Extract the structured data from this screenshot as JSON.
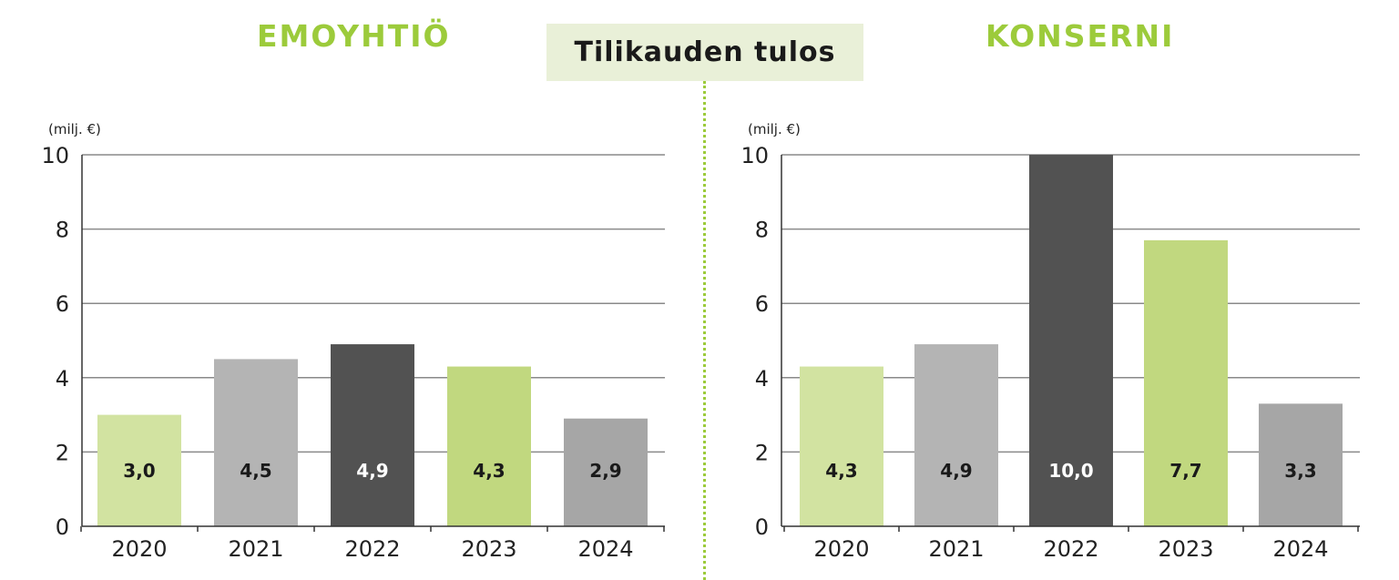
{
  "header": {
    "left_title": "EMOYHTIÖ",
    "center_title": "Tilikauden tulos",
    "right_title": "KONSERNI"
  },
  "chart_data": [
    {
      "type": "bar",
      "title": "EMOYHTIÖ",
      "ylabel": "(milj. €)",
      "ylim": [
        0,
        10
      ],
      "yticks": [
        0,
        2,
        4,
        6,
        8,
        10
      ],
      "grid": true,
      "categories": [
        "2020",
        "2021",
        "2022",
        "2023",
        "2024"
      ],
      "values": [
        3.0,
        4.5,
        4.9,
        4.3,
        2.9
      ],
      "value_labels": [
        "3,0",
        "4,5",
        "4,9",
        "4,3",
        "2,9"
      ],
      "colors": [
        "#d2e3a1",
        "#b4b4b4",
        "#525252",
        "#c1d87f",
        "#a6a6a6"
      ],
      "label_colors": [
        "#1a1a1a",
        "#1a1a1a",
        "#ffffff",
        "#1a1a1a",
        "#1a1a1a"
      ]
    },
    {
      "type": "bar",
      "title": "KONSERNI",
      "ylabel": "(milj. €)",
      "ylim": [
        0,
        10
      ],
      "yticks": [
        0,
        2,
        4,
        6,
        8,
        10
      ],
      "grid": true,
      "categories": [
        "2020",
        "2021",
        "2022",
        "2023",
        "2024"
      ],
      "values": [
        4.3,
        4.9,
        10.0,
        7.7,
        3.3
      ],
      "value_labels": [
        "4,3",
        "4,9",
        "10,0",
        "7,7",
        "3,3"
      ],
      "colors": [
        "#d2e3a1",
        "#b4b4b4",
        "#525252",
        "#c1d87f",
        "#a6a6a6"
      ],
      "label_colors": [
        "#1a1a1a",
        "#1a1a1a",
        "#ffffff",
        "#1a1a1a",
        "#1a1a1a"
      ]
    }
  ]
}
